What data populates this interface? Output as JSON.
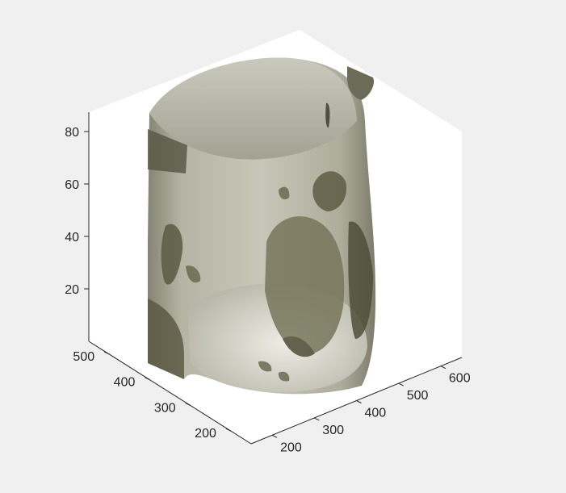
{
  "figure": {
    "background": "#f0f0f0",
    "axes_background": "#ffffff"
  },
  "chart_data": {
    "type": "surface3d",
    "view": "isometric 3-D box",
    "title": "",
    "xlabel": "",
    "ylabel": "",
    "zlabel": "",
    "grid": false,
    "axes": {
      "x": {
        "ticks": [
          200,
          300,
          400,
          500,
          600
        ],
        "range": [
          150,
          650
        ]
      },
      "y": {
        "ticks": [
          200,
          300,
          400,
          500
        ],
        "range": [
          150,
          550
        ]
      },
      "z": {
        "ticks": [
          20,
          40,
          60,
          80
        ],
        "range": [
          0,
          88
        ]
      }
    },
    "surface_color": "#a8a890",
    "surface_description_color_dark": "#5d5a45"
  }
}
